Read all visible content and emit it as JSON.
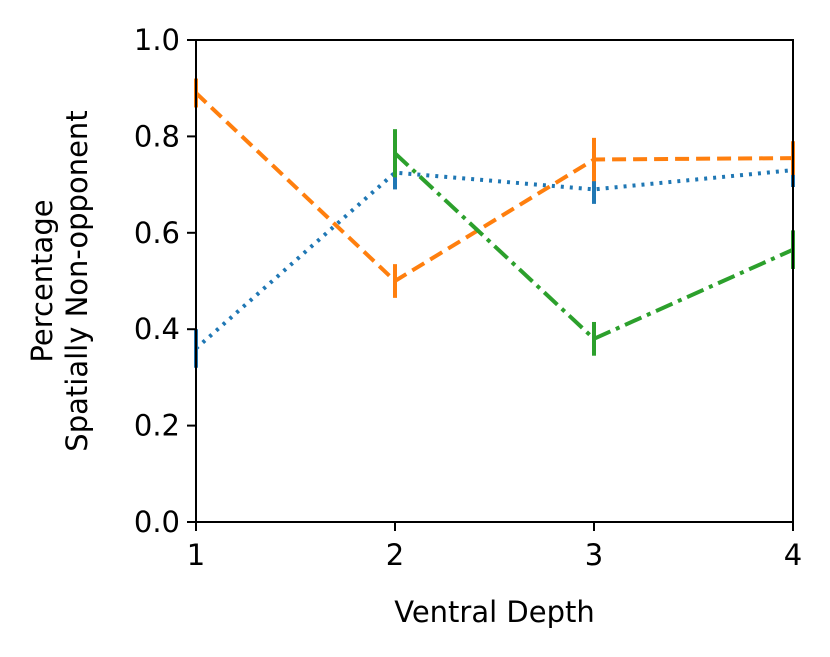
{
  "chart_data": {
    "type": "line",
    "title": "",
    "xlabel": "Ventral Depth",
    "ylabel": [
      "Percentage",
      "Spatially Non-opponent"
    ],
    "xlim": [
      1,
      4
    ],
    "ylim": [
      0.0,
      1.0
    ],
    "xticks": [
      "1",
      "2",
      "3",
      "4"
    ],
    "yticks": [
      "0.0",
      "0.2",
      "0.4",
      "0.6",
      "0.8",
      "1.0"
    ],
    "grid": false,
    "legend": "none",
    "series": [
      {
        "name": "series-blue",
        "color": "#1f77b4",
        "linestyle": "dotted",
        "x": [
          1,
          2,
          3,
          4
        ],
        "y": [
          0.36,
          0.725,
          0.69,
          0.73
        ],
        "err": [
          0.04,
          0.035,
          0.03,
          0.035
        ]
      },
      {
        "name": "series-orange",
        "color": "#ff7f0e",
        "linestyle": "dashed",
        "x": [
          1,
          2,
          3,
          4
        ],
        "y": [
          0.89,
          0.5,
          0.752,
          0.755
        ],
        "err": [
          0.03,
          0.035,
          0.045,
          0.035
        ]
      },
      {
        "name": "series-green",
        "color": "#2ca02c",
        "linestyle": "dashdot",
        "x": [
          2,
          3,
          4
        ],
        "y": [
          0.765,
          0.38,
          0.565
        ],
        "err": [
          0.05,
          0.035,
          0.04
        ]
      }
    ]
  }
}
